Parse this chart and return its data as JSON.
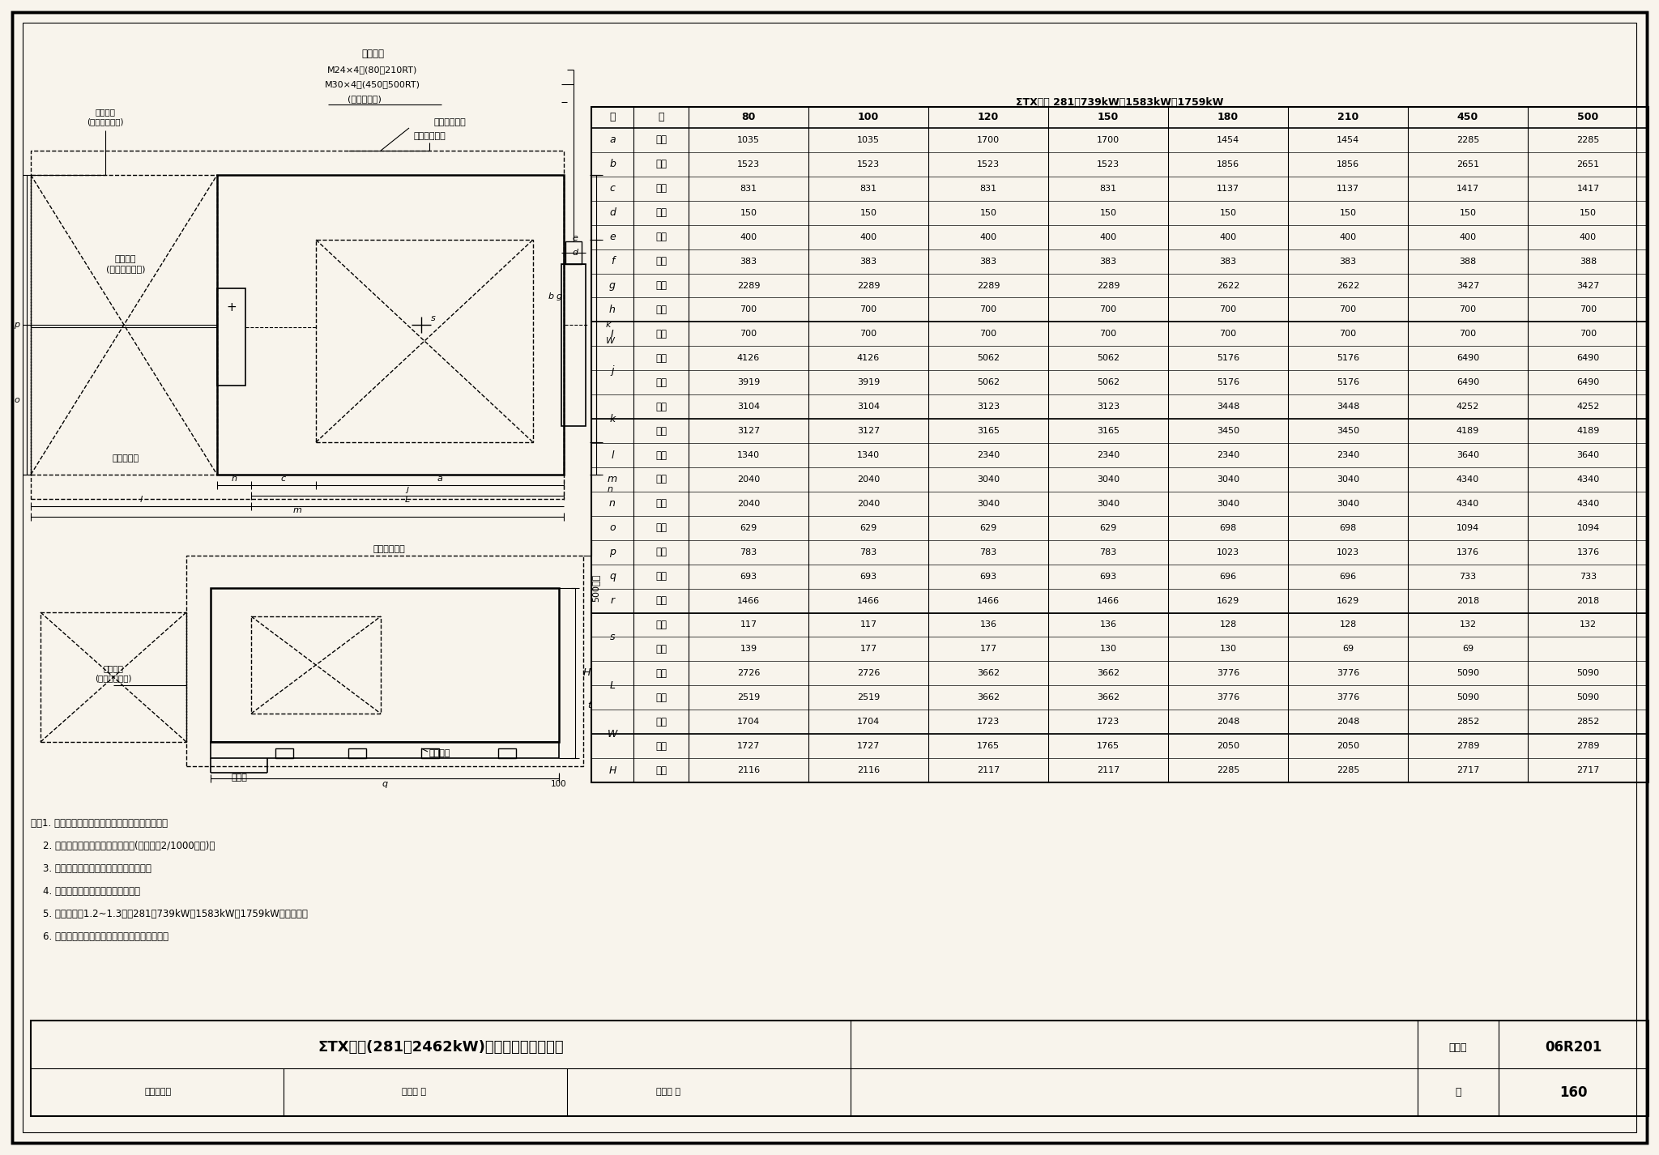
{
  "bg_color": "#f8f4ec",
  "table_title": "ΣTX系列 281～739kW、1583kW、1759kW",
  "table_headers": [
    "80",
    "100",
    "120",
    "150",
    "180",
    "210",
    "450",
    "500"
  ],
  "table_rows": [
    [
      "a",
      "共通",
      "1035",
      "1035",
      "1700",
      "1700",
      "1454",
      "1454",
      "2285",
      "2285"
    ],
    [
      "b",
      "共通",
      "1523",
      "1523",
      "1523",
      "1523",
      "1856",
      "1856",
      "2651",
      "2651"
    ],
    [
      "c",
      "共通",
      "831",
      "831",
      "831",
      "831",
      "1137",
      "1137",
      "1417",
      "1417"
    ],
    [
      "d",
      "共通",
      "150",
      "150",
      "150",
      "150",
      "150",
      "150",
      "150",
      "150"
    ],
    [
      "e",
      "共通",
      "400",
      "400",
      "400",
      "400",
      "400",
      "400",
      "400",
      "400"
    ],
    [
      "f",
      "共通",
      "383",
      "383",
      "383",
      "383",
      "383",
      "383",
      "388",
      "388"
    ],
    [
      "g",
      "共通",
      "2289",
      "2289",
      "2289",
      "2289",
      "2622",
      "2622",
      "3427",
      "3427"
    ],
    [
      "h",
      "共通",
      "700",
      "700",
      "700",
      "700",
      "700",
      "700",
      "700",
      "700"
    ],
    [
      "I",
      "共通",
      "700",
      "700",
      "700",
      "700",
      "700",
      "700",
      "700",
      "700"
    ],
    [
      "j",
      "燃气",
      "4126",
      "4126",
      "5062",
      "5062",
      "5176",
      "5176",
      "6490",
      "6490"
    ],
    [
      "j",
      "燃油",
      "3919",
      "3919",
      "5062",
      "5062",
      "5176",
      "5176",
      "6490",
      "6490"
    ],
    [
      "k",
      "燃气",
      "3104",
      "3104",
      "3123",
      "3123",
      "3448",
      "3448",
      "4252",
      "4252"
    ],
    [
      "k",
      "燃油",
      "3127",
      "3127",
      "3165",
      "3165",
      "3450",
      "3450",
      "4189",
      "4189"
    ],
    [
      "l",
      "共通",
      "1340",
      "1340",
      "2340",
      "2340",
      "2340",
      "2340",
      "3640",
      "3640"
    ],
    [
      "m",
      "共通",
      "2040",
      "2040",
      "3040",
      "3040",
      "3040",
      "3040",
      "4340",
      "4340"
    ],
    [
      "n",
      "共通",
      "2040",
      "2040",
      "3040",
      "3040",
      "3040",
      "3040",
      "4340",
      "4340"
    ],
    [
      "o",
      "共通",
      "629",
      "629",
      "629",
      "629",
      "698",
      "698",
      "1094",
      "1094"
    ],
    [
      "p",
      "共通",
      "783",
      "783",
      "783",
      "783",
      "1023",
      "1023",
      "1376",
      "1376"
    ],
    [
      "q",
      "共通",
      "693",
      "693",
      "693",
      "693",
      "696",
      "696",
      "733",
      "733"
    ],
    [
      "r",
      "共通",
      "1466",
      "1466",
      "1466",
      "1466",
      "1629",
      "1629",
      "2018",
      "2018"
    ],
    [
      "s",
      "燃气",
      "117",
      "117",
      "136",
      "136",
      "128",
      "128",
      "132",
      "132"
    ],
    [
      "s",
      "燃油",
      "139",
      "177",
      "177",
      "130",
      "130",
      "69",
      "69",
      ""
    ],
    [
      "L",
      "燃气",
      "2726",
      "2726",
      "3662",
      "3662",
      "3776",
      "3776",
      "5090",
      "5090"
    ],
    [
      "L",
      "燃油",
      "2519",
      "2519",
      "3662",
      "3662",
      "3776",
      "3776",
      "5090",
      "5090"
    ],
    [
      "W",
      "燃气",
      "1704",
      "1704",
      "1723",
      "1723",
      "2048",
      "2048",
      "2852",
      "2852"
    ],
    [
      "W",
      "燃油",
      "1727",
      "1727",
      "1765",
      "1765",
      "2050",
      "2050",
      "2789",
      "2789"
    ],
    [
      "H",
      "共通",
      "2116",
      "2116",
      "2117",
      "2117",
      "2285",
      "2285",
      "2717",
      "2717"
    ]
  ],
  "notes": [
    "注：1. 应在冷温水机的前侧或后侧确保有拨管空间。",
    "    2. 基础面施工时应确保水平、平滑(水平度为2/1000左右)。",
    "    3. 应在冷温水机的周围进行排水沟施工。",
    "    4. 关于暖气特大型尺寸请另行询问。",
    "    5. 本图适用于1.2~1.3系列281～739kW、1583kW、1759kW的直燃机。",
    "    6. 本图按同方川崎空调设备有限公司资料编制。"
  ],
  "main_title": "ΣTX系列(281～2462kW)直燃机安装基础图表",
  "atlas_label": "图集号",
  "atlas_val": "06R201",
  "page_label": "页",
  "page_val": "160",
  "review_text": "审核李著董",
  "check_text": "校对张 伟",
  "design_text": "设计徐 相"
}
